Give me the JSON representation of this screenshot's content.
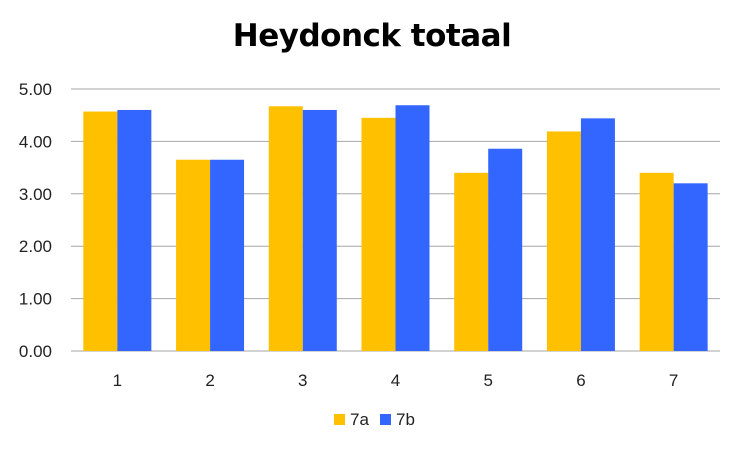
{
  "chart_data": {
    "type": "bar",
    "title": "Heydonck totaal",
    "xlabel": "",
    "ylabel": "",
    "categories": [
      "1",
      "2",
      "3",
      "4",
      "5",
      "6",
      "7"
    ],
    "series": [
      {
        "name": "7a",
        "color": "#FFC000",
        "values": [
          4.57,
          3.65,
          4.67,
          4.45,
          3.4,
          4.19,
          3.4
        ]
      },
      {
        "name": "7b",
        "color": "#3366FF",
        "values": [
          4.6,
          3.65,
          4.6,
          4.69,
          3.86,
          4.44,
          3.2
        ]
      }
    ],
    "ylim": [
      0,
      5
    ],
    "yticks": [
      "0.00",
      "1.00",
      "2.00",
      "3.00",
      "4.00",
      "5.00"
    ],
    "grid": true,
    "legend_position": "bottom"
  }
}
